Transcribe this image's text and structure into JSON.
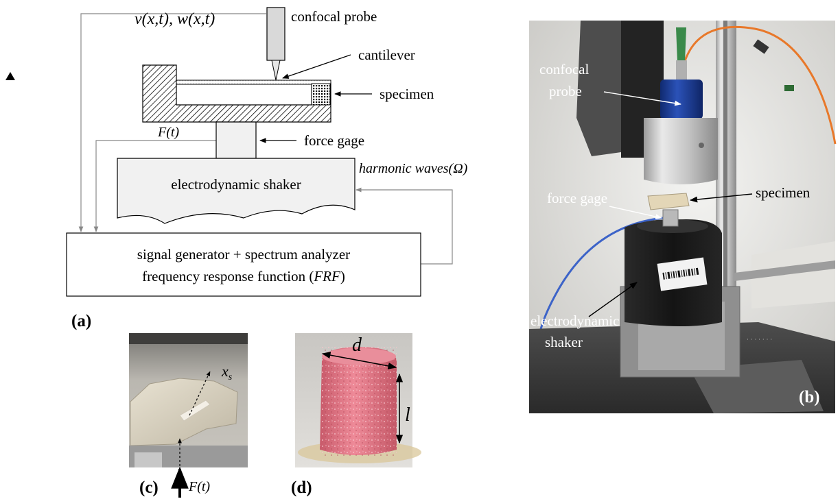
{
  "schematic": {
    "measured_label": "v(x,t), w(x,t)",
    "probe_label": "confocal probe",
    "cantilever_label": "cantilever",
    "specimen_label": "specimen",
    "force_signal_label": "F(t)",
    "force_gage_label": "force gage",
    "excitation_label": "harmonic waves(Ω)",
    "shaker_label": "electrodynamic shaker",
    "analyzer_line1": "signal generator + spectrum analyzer",
    "analyzer_line2_prefix": "frequency response function (",
    "analyzer_line2_italic": "FRF",
    "analyzer_line2_suffix": ")",
    "panel_letter": "(a)"
  },
  "photo_setup": {
    "probe_label_line1": "confocal",
    "probe_label_line2": "probe",
    "specimen_label": "specimen",
    "force_gage_label": "force gage",
    "shaker_label_line1": "electrodynamic",
    "shaker_label_line2": "shaker",
    "panel_letter": "(b)"
  },
  "photo_fixture": {
    "position_label": "x",
    "position_subscript": "s",
    "force_label": "F(t)",
    "panel_letter": "(c)"
  },
  "photo_specimen": {
    "diameter_label": "d",
    "length_label": "l",
    "panel_letter": "(d)"
  },
  "colors": {
    "hatch_fill": "#000000",
    "shaker_fill": "#f1f1f1",
    "arrow_gray": "#888888",
    "specimen_pink": "#e47787",
    "probe_blue": "#1f3f9a",
    "cable_orange": "#e8782a",
    "cable_blue": "#3c63c8"
  }
}
